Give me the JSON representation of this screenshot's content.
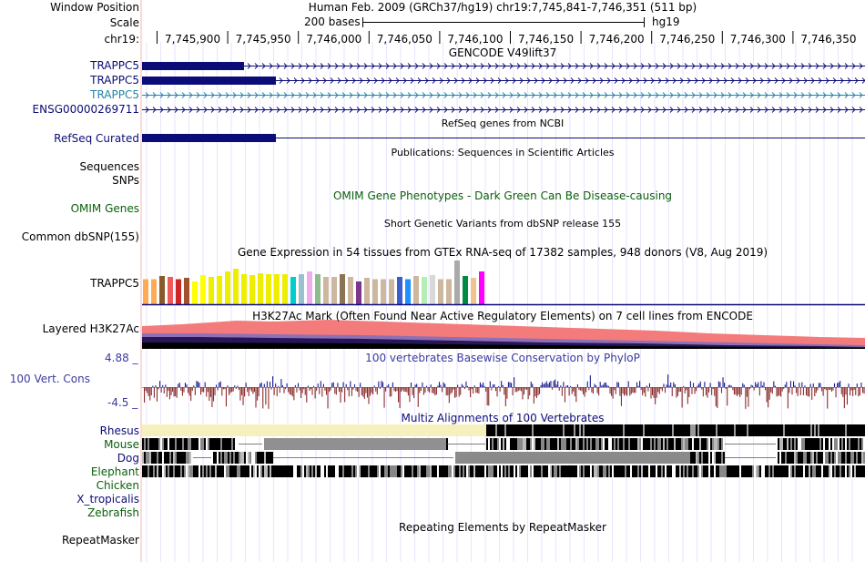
{
  "header": {
    "window_position_label": "Window Position",
    "assembly_text": "Human Feb. 2009 (GRCh37/hg19)   chr19:7,745,841-7,746,351 (511 bp)",
    "scale_label": "Scale",
    "scale_bar_text": "200 bases",
    "scale_db": "hg19",
    "chrom_label": "chr19:",
    "ticks": [
      "7,745,900",
      "7,745,950",
      "7,746,000",
      "7,746,050",
      "7,746,100",
      "7,746,150",
      "7,746,200",
      "7,746,250",
      "7,746,300",
      "7,746,350"
    ]
  },
  "gencode": {
    "title": "GENCODE V49lift37",
    "rows": [
      "TRAPPC5",
      "TRAPPC5",
      "TRAPPC5",
      "ENSG00000269711"
    ]
  },
  "refseq": {
    "title": "RefSeq genes from NCBI",
    "label": "RefSeq Curated"
  },
  "publications": {
    "title": "Publications: Sequences in Scientific Articles",
    "labels": [
      "Sequences",
      "SNPs"
    ]
  },
  "omim": {
    "title": "OMIM Gene Phenotypes - Dark Green Can Be Disease-causing",
    "label": "OMIM Genes"
  },
  "dbsnp": {
    "title": "Short Genetic Variants from dbSNP release 155",
    "label": "Common dbSNP(155)"
  },
  "gtex": {
    "title": "Gene Expression in 54 tissues from GTEx RNA-seq of 17382 samples, 948 donors (V8, Aug 2019)",
    "label": "TRAPPC5",
    "bars": [
      {
        "c": "#FFAA55",
        "v": 0.55
      },
      {
        "c": "#FFAA55",
        "v": 0.55
      },
      {
        "c": "#8B5A2B",
        "v": 0.62
      },
      {
        "c": "#F25A5A",
        "v": 0.6
      },
      {
        "c": "#CD2626",
        "v": 0.55
      },
      {
        "c": "#A0522D",
        "v": 0.58
      },
      {
        "c": "#FFFF00",
        "v": 0.5
      },
      {
        "c": "#FFFF00",
        "v": 0.64
      },
      {
        "c": "#EEEE00",
        "v": 0.6
      },
      {
        "c": "#EEEE00",
        "v": 0.62
      },
      {
        "c": "#EEEE00",
        "v": 0.72
      },
      {
        "c": "#EEEE00",
        "v": 0.78
      },
      {
        "c": "#EEEE00",
        "v": 0.66
      },
      {
        "c": "#EEEE00",
        "v": 0.64
      },
      {
        "c": "#EEEE00",
        "v": 0.68
      },
      {
        "c": "#EEEE00",
        "v": 0.66
      },
      {
        "c": "#EEEE00",
        "v": 0.66
      },
      {
        "c": "#EEEE00",
        "v": 0.66
      },
      {
        "c": "#00CDCD",
        "v": 0.6
      },
      {
        "c": "#9AC0CD",
        "v": 0.66
      },
      {
        "c": "#EEAEEE",
        "v": 0.72
      },
      {
        "c": "#8FBC8F",
        "v": 0.66
      },
      {
        "c": "#CDB79E",
        "v": 0.6
      },
      {
        "c": "#CDB79E",
        "v": 0.6
      },
      {
        "c": "#8B7355",
        "v": 0.66
      },
      {
        "c": "#CDB79E",
        "v": 0.6
      },
      {
        "c": "#7A378B",
        "v": 0.5
      },
      {
        "c": "#CDB79E",
        "v": 0.58
      },
      {
        "c": "#CDB79E",
        "v": 0.55
      },
      {
        "c": "#CDB79E",
        "v": 0.55
      },
      {
        "c": "#CDB79E",
        "v": 0.55
      },
      {
        "c": "#3A5FCD",
        "v": 0.6
      },
      {
        "c": "#1E90FF",
        "v": 0.55
      },
      {
        "c": "#CDB79E",
        "v": 0.62
      },
      {
        "c": "#B4EEB4",
        "v": 0.6
      },
      {
        "c": "#D9D9D9",
        "v": 0.64
      },
      {
        "c": "#CDB79E",
        "v": 0.55
      },
      {
        "c": "#CDB79E",
        "v": 0.55
      },
      {
        "c": "#AAAAAA",
        "v": 0.96
      },
      {
        "c": "#008B45",
        "v": 0.62
      },
      {
        "c": "#EEC591",
        "v": 0.58
      },
      {
        "c": "#FF00FF",
        "v": 0.72
      }
    ]
  },
  "h3k27ac": {
    "title": "H3K27Ac Mark (Often Found Near Active Regulatory Elements) on 7 cell lines from ENCODE",
    "label": "Layered H3K27Ac"
  },
  "phylop": {
    "title": "100 vertebrates Basewise Conservation by PhyloP",
    "label": "100 Vert. Cons",
    "max_label": "4.88 _",
    "min_label": "-4.5 _"
  },
  "multiz": {
    "title": "Multiz Alignments of 100 Vertebrates",
    "species": [
      "Rhesus",
      "Mouse",
      "Dog",
      "Elephant",
      "Chicken",
      "X_tropicalis",
      "Zebrafish"
    ]
  },
  "repeatmasker": {
    "title": "Repeating Elements by RepeatMasker",
    "label": "RepeatMasker"
  },
  "colors": {
    "gene_navy": "#0c0c78",
    "gene_teal": "#1e84a6",
    "h3k27ac_top": "#f47b7b",
    "phylop_pos": "#1b1b8f",
    "phylop_neg": "#8b2b2b",
    "grid_blue": "#c8c8ff",
    "grid_pink": "#ffb8b8"
  }
}
